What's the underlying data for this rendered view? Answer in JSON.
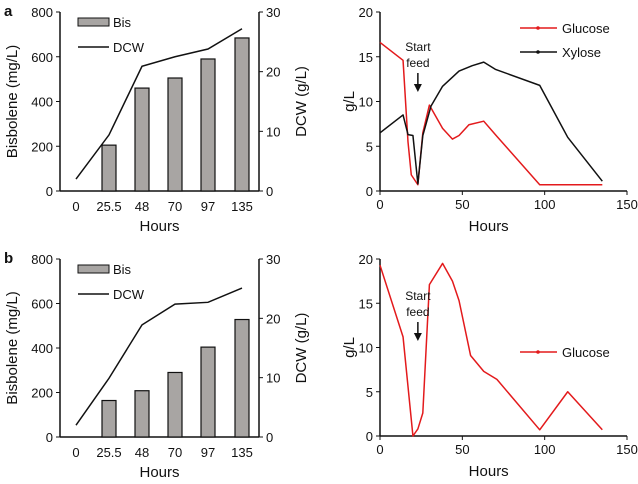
{
  "chart_data": [
    {
      "panel": "a",
      "type": "bar+line",
      "categories": [
        "0",
        "25.5",
        "48",
        "70",
        "97",
        "135"
      ],
      "xlabel": "Hours",
      "ylabel": "Bisbolene (mg/L)",
      "y2label": "DCW (g/L)",
      "ylim": [
        0,
        800
      ],
      "yticks": [
        "0",
        "200",
        "400",
        "600",
        "800"
      ],
      "y2lim": [
        0,
        30
      ],
      "y2ticks": [
        "0",
        "10",
        "20",
        "30"
      ],
      "series": [
        {
          "name": "Bis",
          "kind": "bar",
          "color": "#a8a5a3",
          "values": [
            null,
            205,
            460,
            505,
            590,
            684
          ]
        },
        {
          "name": "DCW",
          "kind": "line",
          "axis": "right",
          "color": "#111111",
          "values": [
            2.0,
            9.4,
            20.9,
            22.5,
            23.8,
            27.2
          ]
        }
      ]
    },
    {
      "panel": "a-right",
      "type": "line",
      "xlabel": "Hours",
      "ylabel": "g/L",
      "xlim": [
        0,
        150
      ],
      "ylim": [
        0,
        20
      ],
      "xticks": [
        "0",
        "50",
        "100",
        "150"
      ],
      "yticks": [
        "0",
        "5",
        "10",
        "15",
        "20"
      ],
      "annotation": [
        "Start",
        "feed"
      ],
      "annotation_x": 23,
      "legend": "top-right",
      "series": [
        {
          "name": "Glucose",
          "color": "#e31a1c",
          "x": [
            0,
            14,
            17,
            19,
            23,
            26,
            30,
            38,
            44,
            48,
            54,
            63,
            71,
            97,
            135
          ],
          "y": [
            16.6,
            14.6,
            5.5,
            1.8,
            0.7,
            6.5,
            9.6,
            7.0,
            5.8,
            6.2,
            7.4,
            7.8,
            6.1,
            0.7,
            0.7
          ]
        },
        {
          "name": "Xylose",
          "color": "#111111",
          "x": [
            0,
            14,
            17,
            20,
            23,
            26,
            31,
            38,
            48,
            56,
            63,
            70,
            97,
            114,
            135
          ],
          "y": [
            6.5,
            8.5,
            6.3,
            6.2,
            0.8,
            6.2,
            9.5,
            11.7,
            13.4,
            14.0,
            14.4,
            13.6,
            11.8,
            6.0,
            1.1
          ]
        }
      ]
    },
    {
      "panel": "b",
      "type": "bar+line",
      "categories": [
        "0",
        "25.5",
        "48",
        "70",
        "97",
        "135"
      ],
      "xlabel": "Hours",
      "ylabel": "Bisbolene (mg/L)",
      "y2label": "DCW (g/L)",
      "ylim": [
        0,
        800
      ],
      "yticks": [
        "0",
        "200",
        "400",
        "600",
        "800"
      ],
      "y2lim": [
        0,
        30
      ],
      "y2ticks": [
        "0",
        "10",
        "20",
        "30"
      ],
      "series": [
        {
          "name": "Bis",
          "kind": "bar",
          "color": "#a8a5a3",
          "values": [
            null,
            164,
            208,
            290,
            404,
            528
          ]
        },
        {
          "name": "DCW",
          "kind": "line",
          "axis": "right",
          "color": "#111111",
          "values": [
            2.0,
            9.9,
            18.9,
            22.4,
            22.7,
            25.1
          ]
        }
      ]
    },
    {
      "panel": "b-right",
      "type": "line",
      "xlabel": "Hours",
      "ylabel": "g/L",
      "xlim": [
        0,
        150
      ],
      "ylim": [
        0,
        20
      ],
      "xticks": [
        "0",
        "50",
        "100",
        "150"
      ],
      "yticks": [
        "0",
        "5",
        "10",
        "15",
        "20"
      ],
      "annotation": [
        "Start",
        "feed"
      ],
      "annotation_x": 23,
      "legend": "right",
      "series": [
        {
          "name": "Glucose",
          "color": "#e31a1c",
          "x": [
            0,
            14,
            20,
            23,
            26,
            30,
            38,
            44,
            48,
            55,
            63,
            71,
            97,
            114,
            135
          ],
          "y": [
            19.3,
            11.2,
            0,
            0.8,
            2.6,
            17.1,
            19.5,
            17.5,
            15.3,
            9.1,
            7.3,
            6.4,
            0.7,
            5.0,
            0.7
          ]
        }
      ]
    }
  ]
}
